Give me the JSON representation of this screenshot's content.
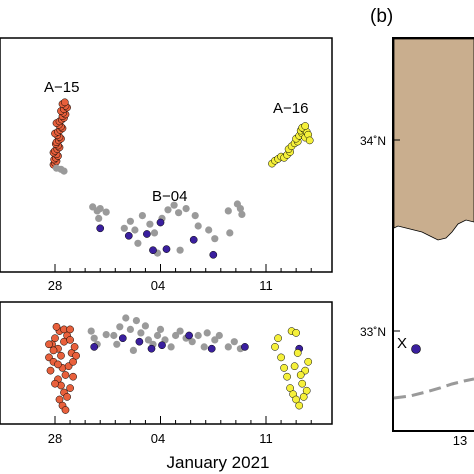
{
  "chart_data": [
    {
      "type": "scatter",
      "panel": "top-left",
      "x_tick_labels": [
        "28",
        "04",
        "11"
      ],
      "xlabel": "",
      "clusters": [
        {
          "label": "A−15",
          "color": "#e8603c"
        },
        {
          "label": "B−04",
          "color": "#3a1f9e"
        },
        {
          "label": "A−16",
          "color": "#f5f03a"
        }
      ],
      "series": [
        {
          "color": "#e8603c",
          "points": [
            [
              27.9,
              0.18
            ],
            [
              28.0,
              0.21
            ],
            [
              28.1,
              0.24
            ],
            [
              27.95,
              0.27
            ],
            [
              28.05,
              0.3
            ],
            [
              28.2,
              0.33
            ],
            [
              28.1,
              0.36
            ],
            [
              27.9,
              0.39
            ],
            [
              28.0,
              0.42
            ],
            [
              28.15,
              0.45
            ],
            [
              28.3,
              0.48
            ],
            [
              28.2,
              0.51
            ],
            [
              28.05,
              0.54
            ],
            [
              28.1,
              0.57
            ],
            [
              28.25,
              0.6
            ],
            [
              28.4,
              0.63
            ],
            [
              28.3,
              0.66
            ],
            [
              28.15,
              0.69
            ],
            [
              28.0,
              0.72
            ],
            [
              28.2,
              0.75
            ],
            [
              28.35,
              0.78
            ],
            [
              28.5,
              0.81
            ],
            [
              28.4,
              0.84
            ],
            [
              28.25,
              0.87
            ],
            [
              28.1,
              0.9
            ],
            [
              28.3,
              0.93
            ],
            [
              28.45,
              0.96
            ],
            [
              28.6,
              0.99
            ],
            [
              28.5,
              1.02
            ],
            [
              28.7,
              1.05
            ],
            [
              28.55,
              1.08
            ],
            [
              28.4,
              1.11
            ],
            [
              28.6,
              1.14
            ],
            [
              28.8,
              1.17
            ],
            [
              28.7,
              1.2
            ],
            [
              28.5,
              1.23
            ],
            [
              28.65,
              1.26
            ]
          ]
        },
        {
          "color": "#9a9a9a",
          "points": [
            [
              28.1,
              0.12
            ],
            [
              28.4,
              0.1
            ],
            [
              28.6,
              0.07
            ],
            [
              30.5,
              -0.55
            ],
            [
              30.8,
              -0.62
            ],
            [
              31.0,
              -0.58
            ],
            [
              30.9,
              -0.75
            ],
            [
              32.6,
              -0.92
            ],
            [
              33.0,
              -0.8
            ],
            [
              33.3,
              -0.95
            ],
            [
              33.8,
              -0.7
            ],
            [
              34.3,
              -0.85
            ],
            [
              34.6,
              -1.0
            ],
            [
              35.1,
              -0.75
            ],
            [
              35.5,
              -0.6
            ],
            [
              35.9,
              -0.52
            ],
            [
              36.2,
              -0.65
            ],
            [
              36.7,
              -0.58
            ],
            [
              37.3,
              -0.7
            ],
            [
              37.5,
              -0.88
            ],
            [
              38.2,
              -0.95
            ],
            [
              38.6,
              -1.1
            ],
            [
              39.6,
              -1.0
            ],
            [
              40.1,
              -0.5
            ],
            [
              40.3,
              -0.58
            ],
            [
              40.4,
              -0.68
            ],
            [
              31.4,
              -0.64
            ],
            [
              33.5,
              -1.18
            ],
            [
              34.8,
              -1.35
            ],
            [
              36.3,
              -1.3
            ],
            [
              39.5,
              -0.62
            ]
          ]
        },
        {
          "color": "#3a1f9e",
          "points": [
            [
              31.0,
              -0.92
            ],
            [
              32.9,
              -1.05
            ],
            [
              34.1,
              -1.02
            ],
            [
              35.0,
              -0.82
            ],
            [
              34.5,
              -1.3
            ],
            [
              35.4,
              -1.28
            ],
            [
              37.2,
              -1.12
            ],
            [
              38.5,
              -1.38
            ]
          ]
        },
        {
          "color": "#f5f03a",
          "points": [
            [
              42.4,
              0.2
            ],
            [
              42.6,
              0.25
            ],
            [
              42.8,
              0.28
            ],
            [
              43.0,
              0.32
            ],
            [
              43.2,
              0.3
            ],
            [
              43.4,
              0.35
            ],
            [
              43.6,
              0.4
            ],
            [
              43.5,
              0.45
            ],
            [
              43.7,
              0.5
            ],
            [
              43.9,
              0.55
            ],
            [
              44.1,
              0.58
            ],
            [
              44.0,
              0.63
            ],
            [
              44.2,
              0.68
            ],
            [
              44.4,
              0.72
            ],
            [
              44.3,
              0.77
            ],
            [
              44.5,
              0.8
            ],
            [
              44.7,
              0.75
            ],
            [
              44.6,
              0.65
            ],
            [
              44.8,
              0.7
            ],
            [
              44.9,
              0.6
            ],
            [
              44.4,
              0.82
            ],
            [
              44.6,
              0.85
            ]
          ]
        }
      ]
    },
    {
      "type": "scatter",
      "panel": "bottom-left",
      "x_tick_labels": [
        "28",
        "04",
        "11"
      ],
      "xlabel": "January 2021",
      "series": [
        {
          "color": "#e8603c",
          "points": [
            [
              27.6,
              0.6
            ],
            [
              27.8,
              0.75
            ],
            [
              28.0,
              0.82
            ],
            [
              28.2,
              0.7
            ],
            [
              27.9,
              0.55
            ],
            [
              28.4,
              0.62
            ],
            [
              28.6,
              0.78
            ],
            [
              28.8,
              0.85
            ],
            [
              28.3,
              0.9
            ],
            [
              28.1,
              0.95
            ],
            [
              28.5,
              0.48
            ],
            [
              28.7,
              0.4
            ],
            [
              28.9,
              0.5
            ],
            [
              29.1,
              0.65
            ],
            [
              29.3,
              0.72
            ],
            [
              29.0,
              0.8
            ],
            [
              27.7,
              0.45
            ],
            [
              28.2,
              0.35
            ],
            [
              28.4,
              0.28
            ],
            [
              28.6,
              0.2
            ],
            [
              28.8,
              0.15
            ],
            [
              29.0,
              0.25
            ],
            [
              29.2,
              0.38
            ],
            [
              28.0,
              0.3
            ],
            [
              28.3,
              0.12
            ],
            [
              28.5,
              0.05
            ],
            [
              28.7,
              0.0
            ],
            [
              29.2,
              0.55
            ],
            [
              27.9,
              0.68
            ],
            [
              28.6,
              0.92
            ],
            [
              29.0,
              0.92
            ],
            [
              29.4,
              0.62
            ],
            [
              28.2,
              0.52
            ],
            [
              27.6,
              0.75
            ]
          ]
        },
        {
          "color": "#9a9a9a",
          "points": [
            [
              30.4,
              0.9
            ],
            [
              30.6,
              0.82
            ],
            [
              30.8,
              0.75
            ],
            [
              31.9,
              0.85
            ],
            [
              32.3,
              0.95
            ],
            [
              32.7,
              1.05
            ],
            [
              33.0,
              0.92
            ],
            [
              33.4,
              1.02
            ],
            [
              33.7,
              0.88
            ],
            [
              34.0,
              0.96
            ],
            [
              34.2,
              0.8
            ],
            [
              34.5,
              0.75
            ],
            [
              34.8,
              0.85
            ],
            [
              35.0,
              0.92
            ],
            [
              35.3,
              0.8
            ],
            [
              35.7,
              0.72
            ],
            [
              36.0,
              0.85
            ],
            [
              36.3,
              0.9
            ],
            [
              36.7,
              0.82
            ],
            [
              37.1,
              0.78
            ],
            [
              37.5,
              0.85
            ],
            [
              37.9,
              0.72
            ],
            [
              38.1,
              0.88
            ],
            [
              38.6,
              0.8
            ],
            [
              38.9,
              0.85
            ],
            [
              39.5,
              0.72
            ],
            [
              39.9,
              0.78
            ],
            [
              40.3,
              0.7
            ],
            [
              31.4,
              0.86
            ],
            [
              32.1,
              0.75
            ],
            [
              33.2,
              0.68
            ]
          ]
        },
        {
          "color": "#3a1f9e",
          "points": [
            [
              30.6,
              0.72
            ],
            [
              32.5,
              0.82
            ],
            [
              33.6,
              0.78
            ],
            [
              34.4,
              0.7
            ],
            [
              35.1,
              0.74
            ],
            [
              36.9,
              0.85
            ],
            [
              38.4,
              0.7
            ],
            [
              40.6,
              0.72
            ],
            [
              44.2,
              0.7
            ]
          ]
        },
        {
          "color": "#f5f03a",
          "points": [
            [
              42.6,
              0.72
            ],
            [
              42.8,
              0.82
            ],
            [
              43.0,
              0.6
            ],
            [
              43.2,
              0.48
            ],
            [
              43.4,
              0.38
            ],
            [
              43.6,
              0.25
            ],
            [
              43.8,
              0.18
            ],
            [
              44.0,
              0.12
            ],
            [
              44.2,
              0.05
            ],
            [
              44.4,
              0.3
            ],
            [
              44.6,
              0.45
            ],
            [
              44.8,
              0.55
            ],
            [
              44.1,
              0.65
            ],
            [
              43.9,
              0.5
            ],
            [
              44.3,
              0.4
            ],
            [
              44.7,
              0.22
            ],
            [
              44.5,
              0.15
            ],
            [
              43.7,
              0.9
            ],
            [
              44.0,
              0.88
            ]
          ]
        }
      ]
    },
    {
      "type": "map",
      "panel": "right",
      "panel_tag": "(b)",
      "lat_tick_labels": [
        "34˚N",
        "33˚N"
      ],
      "lon_tick_label": "13",
      "land_color": "#c9ae8e",
      "track_color": "#9a9a9a",
      "marker": {
        "label": "X",
        "color": "#3a1f9e"
      }
    }
  ]
}
